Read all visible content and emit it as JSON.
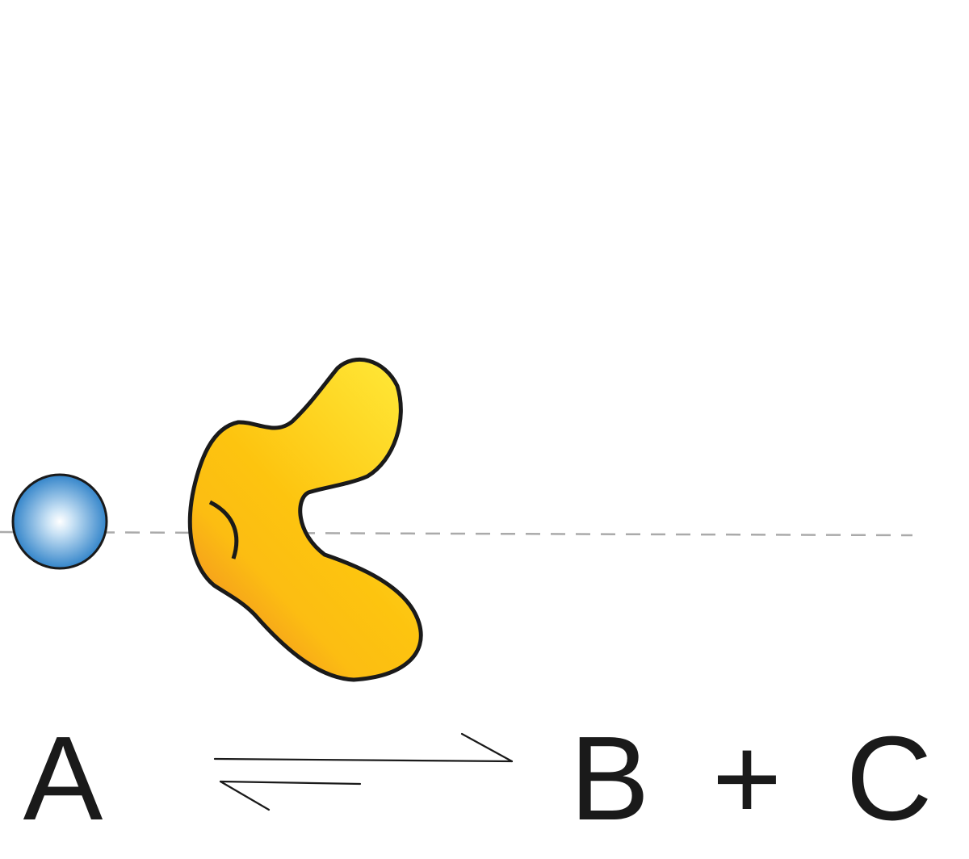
{
  "equation": {
    "reactant": "A",
    "product_1": "B",
    "operator": "+",
    "product_2": "C"
  },
  "colors": {
    "molecule_center": "#ffffff",
    "molecule_edge": "#1f78c4",
    "enzyme_light": "#ffe433",
    "enzyme_mid": "#fdc40f",
    "enzyme_dark": "#f08a24",
    "outline": "#1a1a1a",
    "guide_line": "#aaaaaa"
  },
  "icons": {
    "molecule": "substrate-sphere-icon",
    "enzyme": "enzyme-blob-icon",
    "arrow": "equilibrium-arrows-icon"
  }
}
